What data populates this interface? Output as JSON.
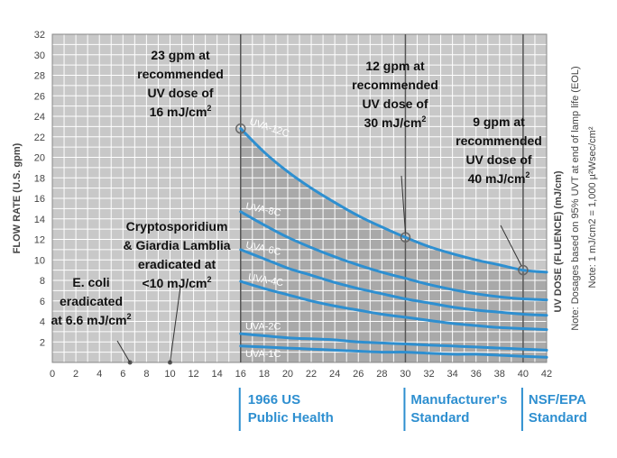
{
  "chart_data": {
    "type": "line",
    "xlabel": "UV DOSE (FLUENCE) (mJ/cm)",
    "ylabel": "FLOW RATE (U.S. gpm)",
    "xlim": [
      0,
      42
    ],
    "ylim": [
      0,
      32
    ],
    "x_ticks": [
      0,
      2,
      4,
      6,
      8,
      10,
      12,
      14,
      16,
      18,
      20,
      22,
      24,
      26,
      28,
      30,
      32,
      34,
      36,
      38,
      40,
      42
    ],
    "y_ticks": [
      2,
      4,
      6,
      8,
      10,
      12,
      14,
      16,
      18,
      20,
      22,
      24,
      26,
      28,
      30,
      32
    ],
    "grid": true,
    "shaded_region": {
      "x_from": 16,
      "x_to": 42,
      "below_series": "UVA-12C",
      "color": "#a9a9a9"
    },
    "colors": {
      "plot_bg": "#c8c8c8",
      "shaded": "#a9a9a9",
      "grid": "#ffffff",
      "curve": "#2e8fd0",
      "text": "#111111",
      "axis_text": "#444444"
    },
    "x": [
      16,
      18,
      20,
      22,
      24,
      26,
      28,
      30,
      32,
      34,
      36,
      38,
      40,
      42
    ],
    "series": [
      {
        "name": "UVA-12C",
        "values": [
          22.8,
          20.5,
          18.6,
          17.0,
          15.6,
          14.3,
          13.2,
          12.2,
          11.3,
          10.6,
          10.0,
          9.5,
          9.0,
          8.8
        ]
      },
      {
        "name": "UVA-8C",
        "values": [
          14.7,
          13.4,
          12.2,
          11.2,
          10.3,
          9.5,
          8.8,
          8.2,
          7.6,
          7.1,
          6.7,
          6.4,
          6.2,
          6.1
        ]
      },
      {
        "name": "UVA-6C",
        "values": [
          11.0,
          10.1,
          9.2,
          8.5,
          7.8,
          7.2,
          6.7,
          6.2,
          5.8,
          5.4,
          5.1,
          4.9,
          4.7,
          4.6
        ]
      },
      {
        "name": "UVA-4C",
        "values": [
          7.9,
          7.2,
          6.6,
          6.0,
          5.5,
          5.1,
          4.7,
          4.4,
          4.1,
          3.8,
          3.6,
          3.4,
          3.3,
          3.2
        ]
      },
      {
        "name": "UVA-2C",
        "values": [
          2.8,
          2.6,
          2.4,
          2.3,
          2.2,
          2.0,
          1.9,
          1.8,
          1.7,
          1.6,
          1.5,
          1.4,
          1.3,
          1.2
        ]
      },
      {
        "name": "UVA-1C",
        "values": [
          1.6,
          1.5,
          1.4,
          1.3,
          1.2,
          1.1,
          1.0,
          1.0,
          0.9,
          0.8,
          0.8,
          0.7,
          0.6,
          0.5
        ]
      }
    ],
    "points": [
      {
        "x": 16,
        "y": 22.8
      },
      {
        "x": 30,
        "y": 12.2
      },
      {
        "x": 40,
        "y": 9.0
      },
      {
        "x": 6.6,
        "y": 0
      },
      {
        "x": 10,
        "y": 0
      }
    ],
    "vertical_lines": [
      16,
      30,
      40
    ],
    "notes": [
      "Note: Dosages based on 95% UVT at end of lamp life (EOL)",
      "Note: 1 mJ/cm2 = 1,000 µ²Wsec/cm²"
    ],
    "annotations": {
      "a16": [
        "23 gpm at",
        "recommended",
        "UV dose of",
        "16 mJ/cm"
      ],
      "a30": [
        "12 gpm at",
        "recommended",
        "UV dose of",
        "30 mJ/cm"
      ],
      "a40": [
        "9 gpm at",
        "recommended",
        "UV dose of",
        "40 mJ/cm"
      ],
      "crypto": [
        "Cryptosporidium",
        "& Giardia Lamblia",
        "eradicated at",
        "<10 mJ/cm"
      ],
      "ecoli": [
        "E. coli",
        "eradicated",
        "at 6.6 mJ/cm"
      ],
      "sup": "2"
    },
    "standards": [
      [
        "1966 US",
        "Public Health"
      ],
      [
        "Manufacturer's",
        "Standard"
      ],
      [
        "NSF/EPA",
        "Standard"
      ]
    ]
  }
}
